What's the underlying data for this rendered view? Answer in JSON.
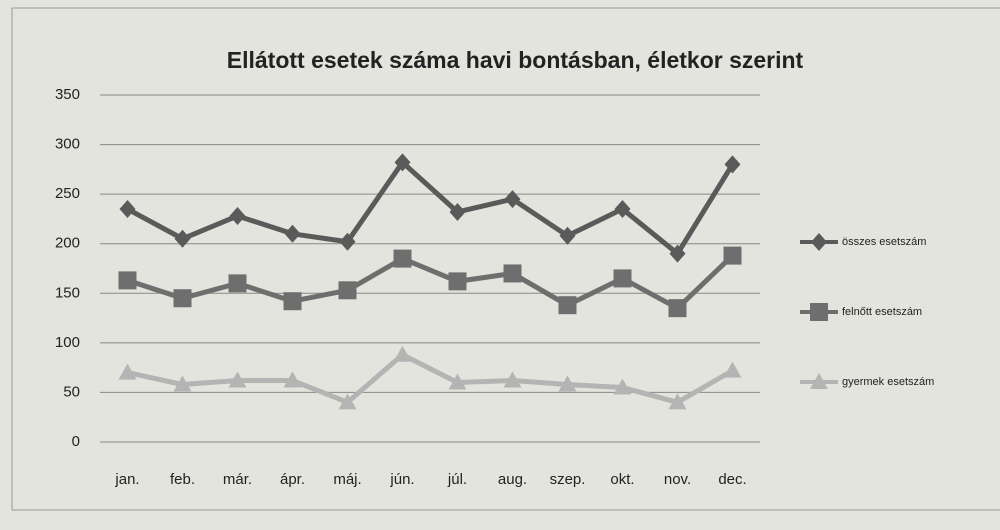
{
  "chart_data": {
    "type": "line",
    "title": "Ellátott esetek száma havi bontásban, életkor szerint",
    "categories": [
      "jan.",
      "feb.",
      "már.",
      "ápr.",
      "máj.",
      "jún.",
      "júl.",
      "aug.",
      "szep.",
      "okt.",
      "nov.",
      "dec."
    ],
    "series": [
      {
        "name": "összes esetszám",
        "color": "#5a5a5a",
        "marker": "diamond",
        "values": [
          235,
          205,
          228,
          210,
          202,
          282,
          232,
          245,
          208,
          235,
          190,
          280
        ]
      },
      {
        "name": "felnőtt esetszám",
        "color": "#6e6e6e",
        "marker": "square",
        "values": [
          163,
          145,
          160,
          142,
          153,
          185,
          162,
          170,
          138,
          165,
          135,
          188
        ]
      },
      {
        "name": "gyermek esetszám",
        "color": "#b4b4b4",
        "marker": "triangle",
        "values": [
          70,
          58,
          62,
          62,
          40,
          88,
          60,
          62,
          58,
          55,
          40,
          72
        ]
      }
    ],
    "ylim": [
      0,
      350
    ],
    "yticks": [
      0,
      50,
      100,
      150,
      200,
      250,
      300,
      350
    ],
    "grid": true,
    "legend": "right"
  }
}
